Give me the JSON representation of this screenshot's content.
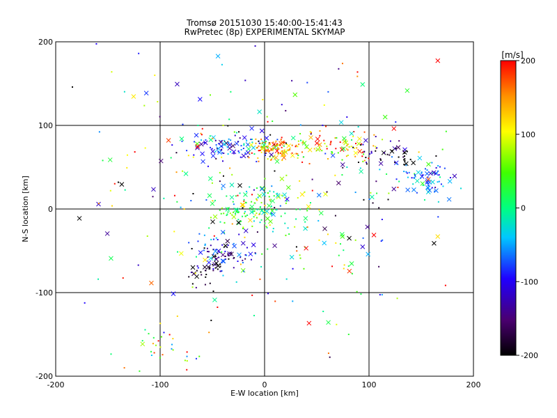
{
  "chart_data": {
    "type": "scatter",
    "title": "Tromsø 20151030 15:40:00-15:41:43",
    "subtitle": "RwPretec (8p) EXPERIMENTAL SKYMAP",
    "xlabel": "E-W location [km]",
    "ylabel": "N-S location [km]",
    "xlim": [
      -200,
      200
    ],
    "ylim": [
      -200,
      200
    ],
    "x_ticks": [
      -200,
      -100,
      0,
      100,
      200
    ],
    "y_ticks": [
      -200,
      -100,
      0,
      100,
      200
    ],
    "grid": true,
    "colorbar": {
      "label": "[m/s]",
      "range": [
        -200,
        200
      ],
      "ticks": [
        -200,
        -100,
        0,
        100,
        200
      ],
      "colormap": [
        "#000000",
        "#7a00a0",
        "#0000ff",
        "#00ffff",
        "#00ff00",
        "#ffff00",
        "#ff8000",
        "#ff0000"
      ],
      "placement": "right"
    },
    "clusters": [
      {
        "cx": -30,
        "cy": 75,
        "sx": 25,
        "sy": 10,
        "n": 90,
        "v": -80,
        "vs": 60
      },
      {
        "cx": 10,
        "cy": 72,
        "sx": 12,
        "sy": 6,
        "n": 110,
        "v": 150,
        "vs": 60
      },
      {
        "cx": 70,
        "cy": 75,
        "sx": 25,
        "sy": 10,
        "n": 80,
        "v": 140,
        "vs": 80
      },
      {
        "cx": 120,
        "cy": 65,
        "sx": 20,
        "sy": 8,
        "n": 50,
        "v": -160,
        "vs": 60
      },
      {
        "cx": 155,
        "cy": 35,
        "sx": 12,
        "sy": 10,
        "n": 70,
        "v": -50,
        "vs": 40
      },
      {
        "cx": 0,
        "cy": 5,
        "sx": 20,
        "sy": 12,
        "n": 90,
        "v": 10,
        "vs": 40
      },
      {
        "cx": -30,
        "cy": -5,
        "sx": 12,
        "sy": 8,
        "n": 40,
        "v": 50,
        "vs": 40
      },
      {
        "cx": -40,
        "cy": -55,
        "sx": 15,
        "sy": 12,
        "n": 80,
        "v": -110,
        "vs": 60
      },
      {
        "cx": -55,
        "cy": -75,
        "sx": 8,
        "sy": 8,
        "n": 25,
        "v": -190,
        "vs": 20
      },
      {
        "cx": -100,
        "cy": -170,
        "sx": 20,
        "sy": 15,
        "n": 35,
        "v": 60,
        "vs": 80
      },
      {
        "cx": 0,
        "cy": 20,
        "sx": 90,
        "sy": 90,
        "n": 350,
        "v": 0,
        "vs": 130
      }
    ]
  }
}
